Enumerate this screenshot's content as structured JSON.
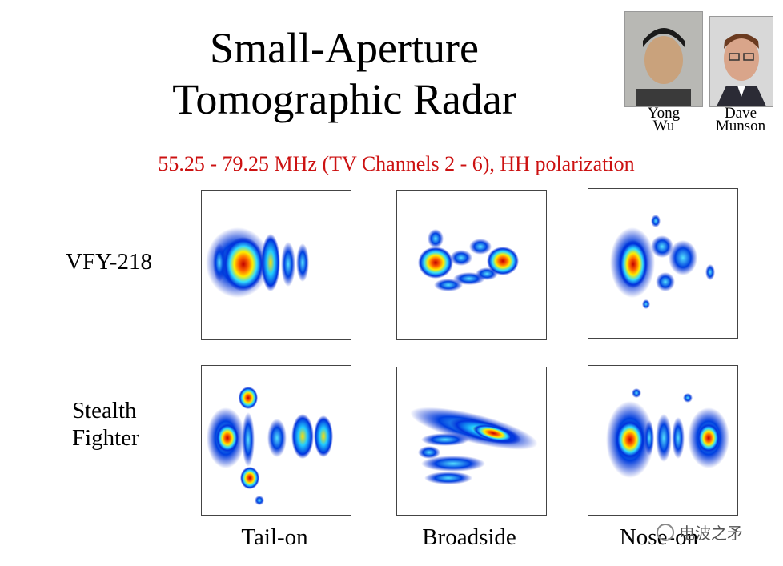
{
  "title_line1": "Small-Aperture",
  "title_line2": "Tomographic Radar",
  "subtitle": "55.25 - 79.25 MHz (TV Channels  2 - 6), HH polarization",
  "people": [
    {
      "first": "Yong",
      "last": "Wu"
    },
    {
      "first": "Dave",
      "last": "Munson"
    }
  ],
  "rows": [
    "VFY-218",
    "Stealth",
    "Fighter"
  ],
  "columns": [
    "Tail-on",
    "Broadside",
    "Nose-on"
  ],
  "watermark": "电波之矛",
  "colors": {
    "title": "#000000",
    "subtitle": "#cc1111",
    "hot": "#cc0000",
    "cold": "#0022cc"
  },
  "icons": [
    "portrait-photo",
    "radar-image-heatmap",
    "wechat-watermark-icon"
  ]
}
